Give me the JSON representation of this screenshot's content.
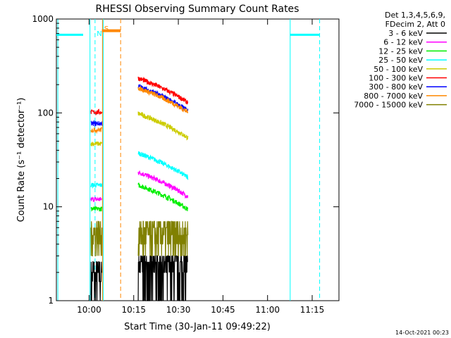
{
  "chart_data": {
    "type": "line",
    "title": "RHESSI Observing Summary Count Rates",
    "xlabel": "Start Time (30-Jan-11 09:49:22)",
    "ylabel": "Count Rate (s⁻¹ detector⁻¹)",
    "y_scale": "log",
    "ylim": [
      1,
      1000
    ],
    "xlim_minutes": [
      -11,
      84
    ],
    "x_ticks": [
      {
        "t": 0,
        "label": "10:00"
      },
      {
        "t": 15,
        "label": "10:15"
      },
      {
        "t": 30,
        "label": "10:30"
      },
      {
        "t": 45,
        "label": "10:45"
      },
      {
        "t": 60,
        "label": "11:00"
      },
      {
        "t": 75,
        "label": "11:15"
      }
    ],
    "y_ticks": [
      {
        "v": 1,
        "label": "1"
      },
      {
        "v": 10,
        "label": "10"
      },
      {
        "v": 100,
        "label": "100"
      },
      {
        "v": 1000,
        "label": "1000"
      }
    ],
    "legend_header": [
      "Det 1,3,4,5,6,9,",
      "FDecim 2, Att 0"
    ],
    "legend_placement": "right",
    "series": [
      {
        "name": "3 - 6 keV",
        "color": "#000000",
        "level": 1.3,
        "slope": 0,
        "kind": "bits"
      },
      {
        "name": "6 - 12 keV",
        "color": "#ff00ff",
        "level": 12,
        "slope": 0.85
      },
      {
        "name": "12 - 25 keV",
        "color": "#00ee00",
        "level": 9.5,
        "slope": 0.7
      },
      {
        "name": "25 - 50 keV",
        "color": "#00ffff",
        "level": 17,
        "slope": 1.1
      },
      {
        "name": "50 - 100 keV",
        "color": "#cccc00",
        "level": 47,
        "slope": 1.0
      },
      {
        "name": "100 - 300 keV",
        "color": "#ff0000",
        "level": 102,
        "slope": 1.2
      },
      {
        "name": "300 - 800 keV",
        "color": "#0000ff",
        "level": 77,
        "slope": 1.4
      },
      {
        "name": "800 - 7000 keV",
        "color": "#ff8800",
        "level": 66,
        "slope": 1.7
      },
      {
        "name": "7000 - 15000 keV",
        "color": "#808000",
        "level": 3.5,
        "slope": 0,
        "kind": "bits"
      }
    ],
    "segments_minutes": [
      [
        0.6,
        4.3
      ],
      [
        16.5,
        33.2
      ]
    ],
    "attenuator_bar": {
      "color": "#ff8800",
      "start": 4.3,
      "end": 10.6,
      "value": 750
    },
    "cyan_bars": [
      {
        "start": -11,
        "end": -2,
        "value": 680
      },
      {
        "start": 67.5,
        "end": 77.5,
        "value": 680
      }
    ],
    "vlines": [
      {
        "t": -10.5,
        "color": "#00ffff",
        "dash": false
      },
      {
        "t": 0.3,
        "color": "#00ffff",
        "dash": false
      },
      {
        "t": 2.0,
        "color": "#00ffff",
        "dash": true
      },
      {
        "t": 4.5,
        "color": "#ff8800",
        "dash": false
      },
      {
        "t": 4.8,
        "color": "#00ffff",
        "dash": false
      },
      {
        "t": 10.6,
        "color": "#ff8800",
        "dash": true
      },
      {
        "t": 67.6,
        "color": "#00ffff",
        "dash": false
      },
      {
        "t": 77.5,
        "color": "#00ffff",
        "dash": true
      }
    ],
    "markers": [
      {
        "t": 4.6,
        "text": "S",
        "color": "#ff8800"
      },
      {
        "t": 2.1,
        "text": "N",
        "color": "#00ffff"
      }
    ],
    "timestamp": "14-Oct-2021 00:23"
  }
}
